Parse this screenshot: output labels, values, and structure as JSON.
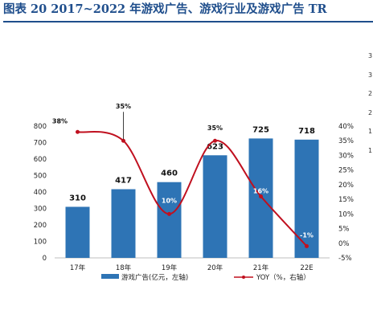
{
  "title": "图表 20   2017~2022 年游戏广告、游戏行业及游戏广告 TR",
  "side_ticks": [
    "3",
    "3",
    "2",
    "2",
    "1",
    "1"
  ],
  "chart_data": {
    "type": "bar",
    "categories": [
      "17年",
      "18年",
      "19年",
      "20年",
      "21年",
      "22E"
    ],
    "series": [
      {
        "name": "游戏广告(亿元，左轴)",
        "type": "bar",
        "values": [
          310,
          417,
          460,
          623,
          725,
          718
        ],
        "color": "#2e74b5",
        "axis": "left"
      },
      {
        "name": "YOY（%，右轴）",
        "type": "line",
        "values": [
          38,
          35,
          10,
          35,
          16,
          -1
        ],
        "color": "#c0101f",
        "axis": "right"
      }
    ],
    "bar_labels": [
      "310",
      "417",
      "460",
      "623",
      "725",
      "718"
    ],
    "line_labels": [
      "38%",
      "35%",
      "10%",
      "35%",
      "16%",
      "-1%"
    ],
    "y_left": {
      "min": 0,
      "max": 800,
      "ticks": [
        "0",
        "100",
        "200",
        "300",
        "400",
        "500",
        "600",
        "700",
        "800"
      ]
    },
    "y_right": {
      "min": -5,
      "max": 40,
      "ticks": [
        "-5%",
        "0%",
        "5%",
        "10%",
        "15%",
        "20%",
        "25%",
        "30%",
        "35%",
        "40%"
      ]
    },
    "legend": [
      "游戏广告(亿元，左轴)",
      "YOY（%，右轴）"
    ],
    "legend_position": "bottom",
    "grid": false,
    "colors": {
      "bar": "#2e74b5",
      "line": "#c0101f",
      "title": "#1f4e8c"
    }
  }
}
